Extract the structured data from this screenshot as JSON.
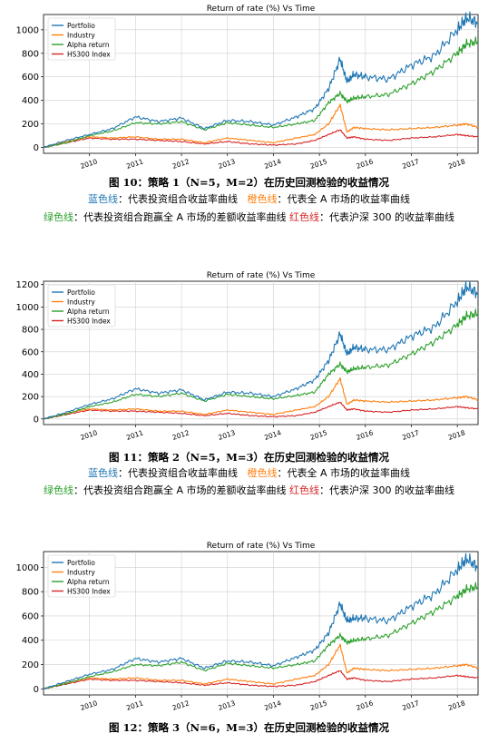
{
  "series_colors": {
    "portfolio": "#1f77b4",
    "industry": "#ff7f0e",
    "alpha": "#2ca02c",
    "hs300": "#d62728"
  },
  "legend_labels": [
    "Portfolio",
    "Industry",
    "Alpha return",
    "HS300 Index"
  ],
  "x_ticks": [
    "2010",
    "2011",
    "2012",
    "2013",
    "2014",
    "2015",
    "2016",
    "2017",
    "2018"
  ],
  "notes": {
    "blue_key": "蓝色线",
    "blue_text": "：代表投资组合收益率曲线",
    "orange_key": "橙色线",
    "orange_text": "：代表全 A 市场的收益率曲线",
    "green_key": "绿色线",
    "green_text": "：代表投资组合跑赢全 A 市场的差额收益率曲线",
    "red_key": "红色线",
    "red_text": "：代表沪深 300 的收益率曲线"
  },
  "chart_data": [
    {
      "type": "line",
      "title": "Return of rate (%) Vs Time",
      "caption": "图 10：策略 1（N=5，M=2）在历史回测检验的收益情况",
      "y_ticks": [
        "0",
        "200",
        "400",
        "600",
        "800",
        "1000"
      ],
      "ylim": [
        -50,
        1130
      ],
      "xlim": [
        2009.0,
        2018.45
      ],
      "grid": true,
      "legend_position": "top-left",
      "x": [
        2009.0,
        2009.5,
        2010.0,
        2010.5,
        2011.0,
        2011.5,
        2012.0,
        2012.5,
        2013.0,
        2013.5,
        2014.0,
        2014.5,
        2014.9,
        2015.2,
        2015.45,
        2015.6,
        2015.75,
        2016.0,
        2016.5,
        2017.0,
        2017.5,
        2018.0,
        2018.2,
        2018.45
      ],
      "series": [
        {
          "name": "Portfolio",
          "values": [
            0,
            60,
            110,
            160,
            260,
            220,
            250,
            160,
            230,
            220,
            190,
            260,
            330,
            500,
            750,
            560,
            620,
            600,
            580,
            700,
            780,
            1000,
            1100,
            1060
          ]
        },
        {
          "name": "Industry",
          "values": [
            0,
            50,
            90,
            80,
            90,
            70,
            70,
            40,
            80,
            60,
            40,
            80,
            110,
            200,
            360,
            130,
            170,
            160,
            150,
            160,
            170,
            190,
            200,
            170
          ]
        },
        {
          "name": "Alpha return",
          "values": [
            0,
            40,
            100,
            140,
            210,
            200,
            220,
            150,
            210,
            190,
            170,
            200,
            230,
            380,
            460,
            390,
            420,
            430,
            450,
            540,
            650,
            800,
            880,
            900
          ]
        },
        {
          "name": "HS300 Index",
          "values": [
            0,
            40,
            80,
            70,
            70,
            60,
            50,
            30,
            50,
            30,
            20,
            30,
            60,
            110,
            150,
            80,
            90,
            70,
            60,
            80,
            90,
            110,
            100,
            90
          ]
        }
      ]
    },
    {
      "type": "line",
      "title": "Return of rate (%) Vs Time",
      "caption": "图 11：策略 2（N=5，M=3）在历史回测检验的收益情况",
      "y_ticks": [
        "0",
        "200",
        "400",
        "600",
        "800",
        "1000",
        "1200"
      ],
      "ylim": [
        -50,
        1230
      ],
      "xlim": [
        2009.0,
        2018.45
      ],
      "grid": true,
      "legend_position": "top-left",
      "x": [
        2009.0,
        2009.5,
        2010.0,
        2010.5,
        2011.0,
        2011.5,
        2012.0,
        2012.5,
        2013.0,
        2013.5,
        2014.0,
        2014.5,
        2014.9,
        2015.2,
        2015.45,
        2015.6,
        2015.75,
        2016.0,
        2016.5,
        2017.0,
        2017.5,
        2018.0,
        2018.2,
        2018.45
      ],
      "series": [
        {
          "name": "Portfolio",
          "values": [
            0,
            60,
            130,
            180,
            270,
            230,
            260,
            170,
            240,
            230,
            200,
            270,
            350,
            520,
            760,
            580,
            640,
            620,
            620,
            740,
            820,
            1050,
            1180,
            1120
          ]
        },
        {
          "name": "Industry",
          "values": [
            0,
            50,
            90,
            80,
            90,
            70,
            70,
            40,
            80,
            60,
            40,
            80,
            110,
            200,
            360,
            130,
            170,
            160,
            150,
            160,
            170,
            190,
            200,
            170
          ]
        },
        {
          "name": "Alpha return",
          "values": [
            0,
            45,
            110,
            150,
            220,
            200,
            230,
            160,
            220,
            200,
            180,
            210,
            240,
            400,
            490,
            420,
            450,
            460,
            480,
            580,
            690,
            840,
            920,
            940
          ]
        },
        {
          "name": "HS300 Index",
          "values": [
            0,
            40,
            80,
            70,
            70,
            60,
            50,
            30,
            50,
            30,
            20,
            30,
            60,
            110,
            150,
            80,
            90,
            70,
            60,
            80,
            90,
            110,
            100,
            90
          ]
        }
      ]
    },
    {
      "type": "line",
      "title": "Return of rate (%) Vs Time",
      "caption": "图 12：策略 3（N=6，M=3）在历史回测检验的收益情况",
      "y_ticks": [
        "0",
        "200",
        "400",
        "600",
        "800",
        "1000"
      ],
      "ylim": [
        -50,
        1130
      ],
      "xlim": [
        2009.0,
        2018.45
      ],
      "grid": true,
      "legend_position": "top-left",
      "x": [
        2009.0,
        2009.5,
        2010.0,
        2010.5,
        2011.0,
        2011.5,
        2012.0,
        2012.5,
        2013.0,
        2013.5,
        2014.0,
        2014.5,
        2014.9,
        2015.2,
        2015.45,
        2015.6,
        2015.75,
        2016.0,
        2016.5,
        2017.0,
        2017.5,
        2018.0,
        2018.2,
        2018.45
      ],
      "series": [
        {
          "name": "Portfolio",
          "values": [
            0,
            60,
            120,
            160,
            250,
            220,
            250,
            170,
            230,
            220,
            190,
            260,
            320,
            460,
            700,
            560,
            580,
            580,
            560,
            680,
            780,
            980,
            1070,
            1000
          ]
        },
        {
          "name": "Industry",
          "values": [
            0,
            50,
            90,
            80,
            90,
            70,
            70,
            40,
            80,
            60,
            40,
            80,
            110,
            200,
            360,
            130,
            170,
            160,
            150,
            160,
            170,
            190,
            200,
            170
          ]
        },
        {
          "name": "Alpha return",
          "values": [
            0,
            45,
            100,
            140,
            200,
            190,
            220,
            150,
            210,
            190,
            170,
            200,
            230,
            360,
            440,
            380,
            400,
            410,
            440,
            540,
            640,
            760,
            820,
            840
          ]
        },
        {
          "name": "HS300 Index",
          "values": [
            0,
            40,
            80,
            70,
            70,
            60,
            50,
            30,
            50,
            30,
            20,
            30,
            60,
            110,
            150,
            80,
            90,
            70,
            60,
            80,
            90,
            110,
            100,
            90
          ]
        }
      ]
    }
  ]
}
